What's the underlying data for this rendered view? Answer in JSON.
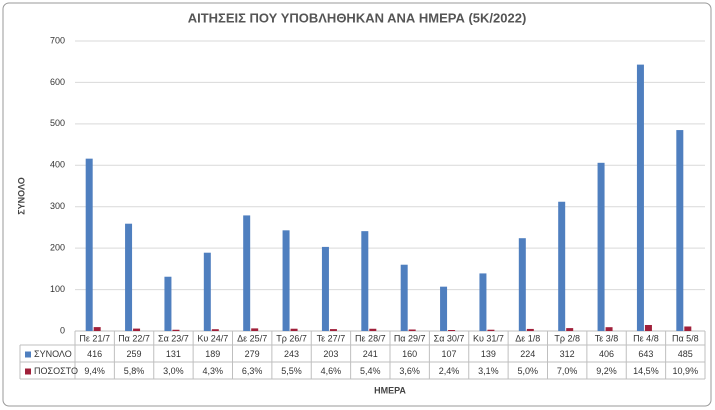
{
  "chart_data": {
    "type": "bar",
    "title": "ΑΙΤΗΣΕΙΣ ΠΟΥ ΥΠΟΒΛΗΘΗΚΑΝ ΑΝΑ ΗΜΕΡΑ (5Κ/2022)",
    "x_label": "ΗΜΕΡΑ",
    "y_label": "ΣΥΝΟΛΟ",
    "categories": [
      "Πε 21/7",
      "Πα 22/7",
      "Σα 23/7",
      "Κυ 24/7",
      "Δε 25/7",
      "Τρ 26/7",
      "Τε 27/7",
      "Πε 28/7",
      "Πα 29/7",
      "Σα 30/7",
      "Κυ 31/7",
      "Δε 1/8",
      "Τρ 2/8",
      "Τε 3/8",
      "Πε 4/8",
      "Πα 5/8"
    ],
    "series": [
      {
        "name": "ΣΥΝΟΛΟ",
        "color": "#4f7fbf",
        "values": [
          416,
          259,
          131,
          189,
          279,
          243,
          203,
          241,
          160,
          107,
          139,
          224,
          312,
          406,
          643,
          485
        ]
      },
      {
        "name": "ΠΟΣΟΣΤΟ",
        "color": "#a0203a",
        "values": [
          9.4,
          5.8,
          3.0,
          4.3,
          6.3,
          5.5,
          4.6,
          5.4,
          3.6,
          2.4,
          3.1,
          5.0,
          7.0,
          9.2,
          14.5,
          10.9
        ],
        "value_labels": [
          "9,4%",
          "5,8%",
          "3,0%",
          "4,3%",
          "6,3%",
          "5,5%",
          "4,6%",
          "5,4%",
          "3,6%",
          "2,4%",
          "3,1%",
          "5,0%",
          "7,0%",
          "9,2%",
          "14,5%",
          "10,9%"
        ]
      }
    ],
    "ylim": [
      0,
      700
    ],
    "yticks": [
      0,
      100,
      200,
      300,
      400,
      500,
      600,
      700
    ],
    "grid": true
  }
}
